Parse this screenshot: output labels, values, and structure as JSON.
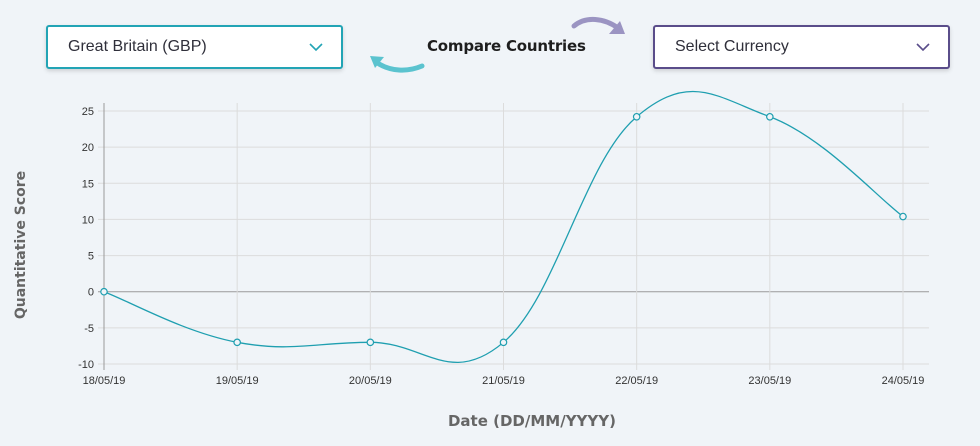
{
  "controls": {
    "left_select": {
      "value": "Great Britain (GBP)",
      "border_color": "#22a4b5"
    },
    "right_select": {
      "value": "Select Currency",
      "border_color": "#5a4d8a"
    },
    "compare_label": "Compare Countries",
    "arrow_left_color": "#5bc3cf",
    "arrow_right_color": "#9b94c2"
  },
  "chart_data": {
    "type": "line",
    "x": [
      "18/05/19",
      "19/05/19",
      "20/05/19",
      "21/05/19",
      "22/05/19",
      "23/05/19",
      "24/05/19"
    ],
    "series": [
      {
        "values": [
          0,
          -7,
          -7,
          -7,
          24.2,
          24.2,
          10.4
        ],
        "color": "#1f9fb0"
      }
    ],
    "xlabel": "Date (DD/MM/YYYY)",
    "ylabel": "Quantitative Score",
    "ylim": [
      -10,
      25
    ],
    "yticks": [
      25,
      20,
      15,
      10,
      5,
      0,
      -5,
      -10
    ],
    "grid": true,
    "smooth": true
  }
}
